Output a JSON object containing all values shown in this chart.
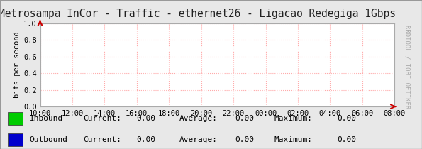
{
  "title": "Metrosampa InCor - Traffic - ethernet26 - Ligacao Redegiga 1Gbps",
  "ylabel": "bits per second",
  "xlim": [
    0,
    22
  ],
  "ylim": [
    0,
    1.0
  ],
  "yticks": [
    0.0,
    0.2,
    0.4,
    0.6,
    0.8,
    1.0
  ],
  "xtick_labels": [
    "10:00",
    "12:00",
    "14:00",
    "16:00",
    "18:00",
    "20:00",
    "22:00",
    "00:00",
    "02:00",
    "04:00",
    "06:00",
    "08:00"
  ],
  "grid_color": "#ffaaaa",
  "grid_style": ":",
  "bg_color": "#e8e8e8",
  "plot_bg_color": "#ffffff",
  "border_color": "#aaaaaa",
  "axis_arrow_color": "#cc0000",
  "watermark": "RRDTOOL / TOBI OETIKER",
  "inbound_color": "#00cc00",
  "outbound_color": "#0000cc",
  "legend_items": [
    {
      "label": "Inbound",
      "color": "#00cc00"
    },
    {
      "label": "Outbound",
      "color": "#0000cc"
    }
  ],
  "legend_stats": [
    {
      "current": "0.00",
      "average": "0.00",
      "maximum": "0.00"
    },
    {
      "current": "0.00",
      "average": "0.00",
      "maximum": "0.00"
    }
  ],
  "title_fontsize": 10.5,
  "label_fontsize": 7.5,
  "tick_fontsize": 7.5,
  "watermark_fontsize": 6.5,
  "legend_fontsize": 8
}
